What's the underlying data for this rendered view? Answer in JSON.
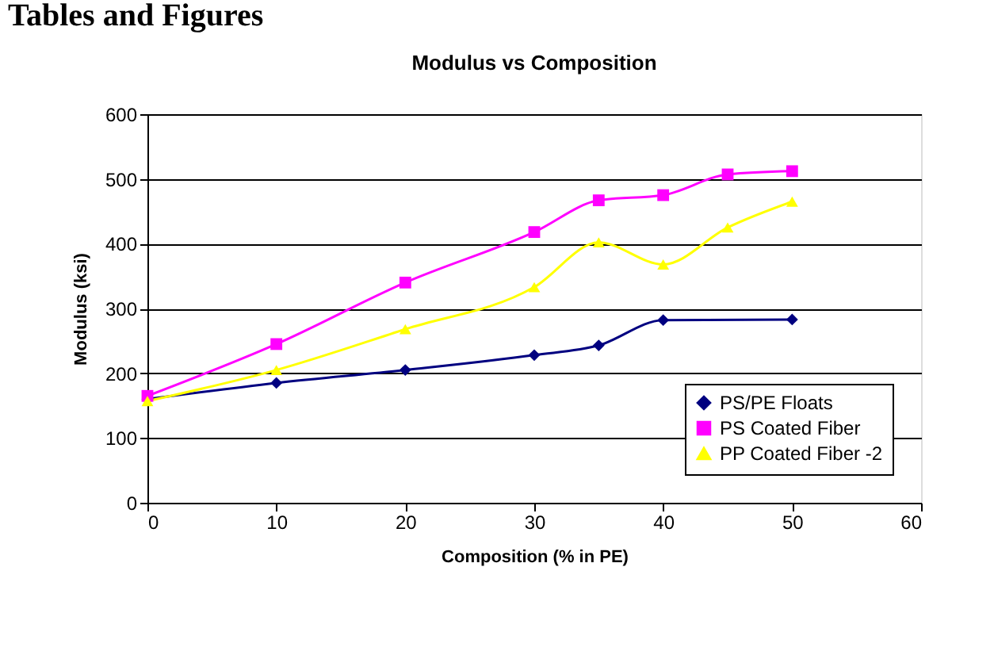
{
  "chart_data": {
    "type": "line",
    "title": "Modulus vs Composition",
    "xlabel": "Composition (% in PE)",
    "ylabel": "Modulus (ksi)",
    "annotations": [
      "Tables and Figures"
    ],
    "series": [
      {
        "name": "PS/PE Floats",
        "color": "#000080",
        "marker": "diamond",
        "x": [
          0,
          10,
          20,
          30,
          35,
          40,
          50
        ],
        "values": [
          160,
          185,
          205,
          228,
          243,
          282,
          283
        ]
      },
      {
        "name": "PS Coated Fiber",
        "color": "#ff00ff",
        "marker": "square",
        "x": [
          0,
          10,
          20,
          30,
          35,
          40,
          45,
          50
        ],
        "values": [
          165,
          245,
          340,
          418,
          467,
          475,
          507,
          512
        ]
      },
      {
        "name": "PP Coated Fiber -2",
        "color": "#ffff00",
        "marker": "triangle",
        "x": [
          0,
          10,
          20,
          30,
          35,
          40,
          45,
          50
        ],
        "values": [
          157,
          205,
          268,
          333,
          402,
          368,
          425,
          465
        ]
      }
    ],
    "xlim": [
      0,
      60
    ],
    "xticks": [
      0,
      10,
      20,
      30,
      40,
      50,
      60
    ],
    "ylim": [
      0,
      600
    ],
    "yticks": [
      0,
      100,
      200,
      300,
      400,
      500,
      600
    ],
    "grid": "y",
    "legend": "bottom right",
    "line_style": "solid"
  }
}
